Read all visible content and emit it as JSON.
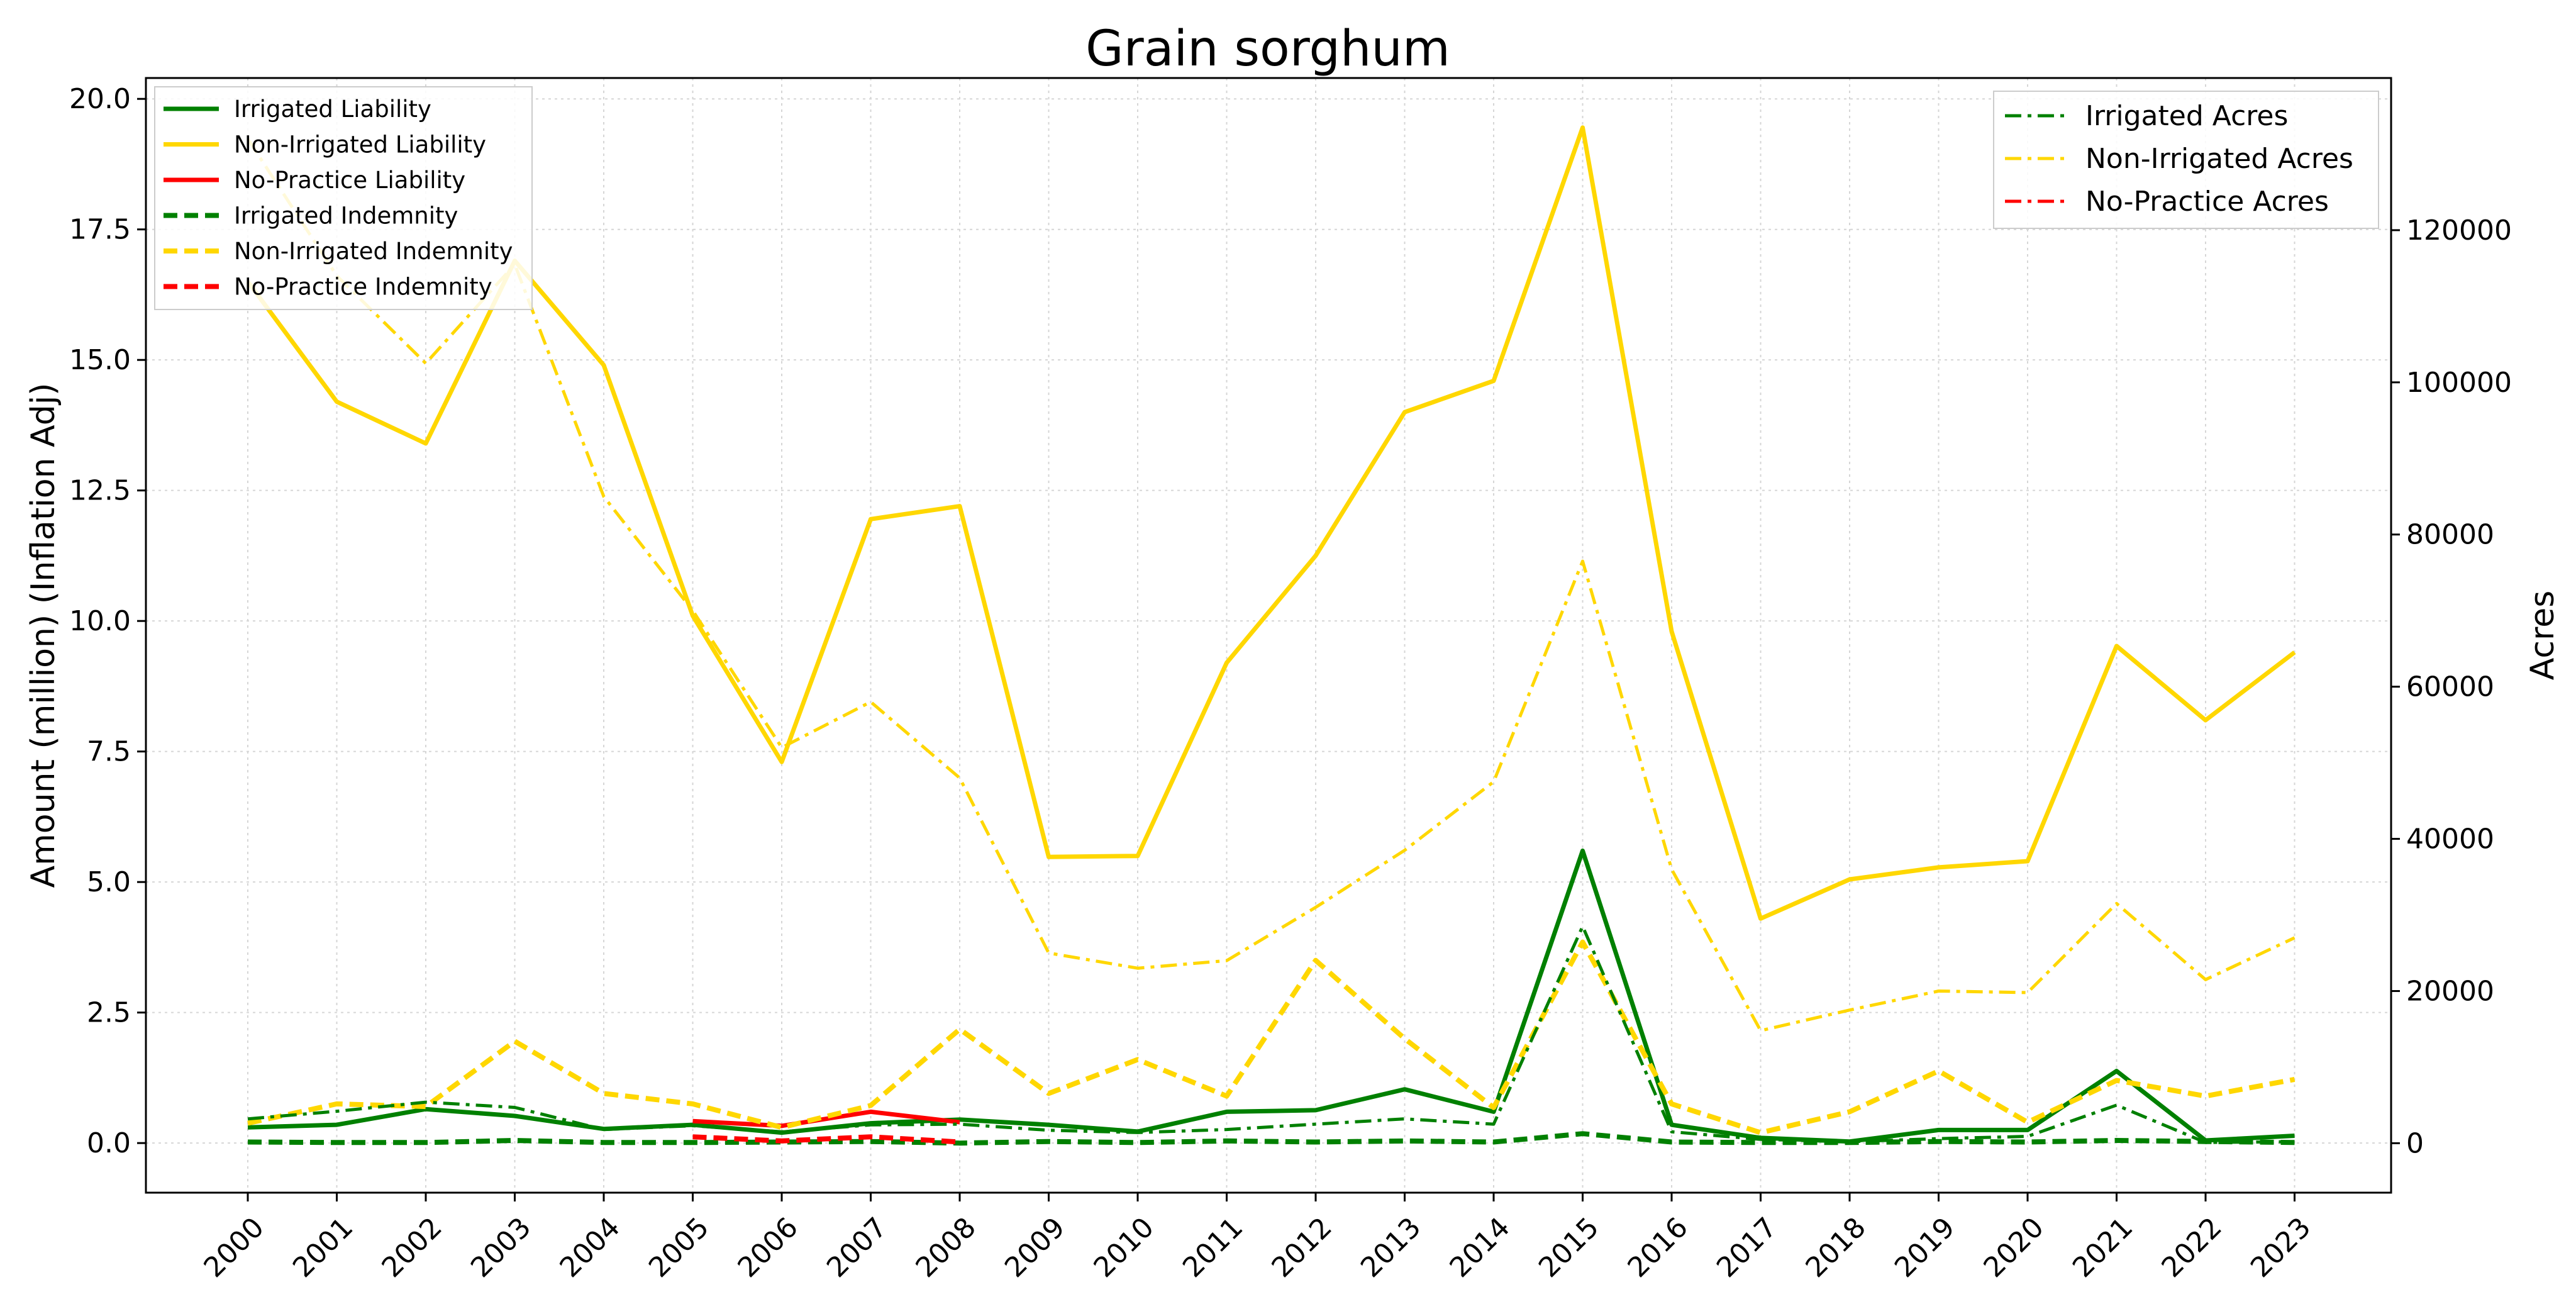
{
  "chart_data": {
    "type": "line",
    "title": "Grain sorghum",
    "ylabel": "Amount (million) (Inflation Adj)",
    "y2label": "Acres",
    "ylim": [
      -0.95,
      20.4
    ],
    "y2lim": [
      -6500,
      140000
    ],
    "yticks": [
      "0.0",
      "2.5",
      "5.0",
      "7.5",
      "10.0",
      "12.5",
      "15.0",
      "17.5",
      "20.0"
    ],
    "y2ticks": [
      "0",
      "20000",
      "40000",
      "60000",
      "80000",
      "100000",
      "120000"
    ],
    "grid": true,
    "x": [
      2000,
      2001,
      2002,
      2003,
      2004,
      2005,
      2006,
      2007,
      2008,
      2009,
      2010,
      2011,
      2012,
      2013,
      2014,
      2015,
      2016,
      2017,
      2018,
      2019,
      2020,
      2021,
      2022,
      2023
    ],
    "colors": {
      "irrigated": "#008000",
      "non_irrigated": "#FFD700",
      "no_practice": "#FF0000"
    },
    "legend_left_position": "upper-left",
    "legend_right_position": "upper-right",
    "series": [
      {
        "name": "Irrigated Liability",
        "axis": "left",
        "style": "solid",
        "color": "#008000",
        "values": [
          0.3,
          0.35,
          0.65,
          0.52,
          0.27,
          0.35,
          0.2,
          0.38,
          0.45,
          0.35,
          0.22,
          0.6,
          0.63,
          1.03,
          0.6,
          5.6,
          0.35,
          0.1,
          0.03,
          0.25,
          0.25,
          1.38,
          0.05,
          0.14
        ]
      },
      {
        "name": "Non-Irrigated Liability",
        "axis": "left",
        "style": "solid",
        "color": "#FFD700",
        "values": [
          16.5,
          14.2,
          13.4,
          16.9,
          14.9,
          10.1,
          7.3,
          11.95,
          12.2,
          5.48,
          5.5,
          9.2,
          11.25,
          14.0,
          14.6,
          19.45,
          9.8,
          4.3,
          5.05,
          5.28,
          5.4,
          9.52,
          8.1,
          9.4
        ]
      },
      {
        "name": "No-Practice Liability",
        "axis": "left",
        "style": "solid",
        "color": "#FF0000",
        "values": [
          null,
          null,
          null,
          null,
          null,
          0.42,
          0.33,
          0.6,
          0.4,
          null,
          null,
          null,
          null,
          null,
          null,
          null,
          null,
          null,
          null,
          null,
          null,
          null,
          null,
          null
        ]
      },
      {
        "name": "Irrigated Indemnity",
        "axis": "left",
        "style": "dashed",
        "color": "#008000",
        "values": [
          0.02,
          0.01,
          0.01,
          0.05,
          0.01,
          0.01,
          0.02,
          0.03,
          0.0,
          0.03,
          0.01,
          0.04,
          0.02,
          0.04,
          0.02,
          0.18,
          0.02,
          0.01,
          0.01,
          0.03,
          0.02,
          0.05,
          0.03,
          0.01
        ]
      },
      {
        "name": "Non-Irrigated Indemnity",
        "axis": "left",
        "style": "dashed",
        "color": "#FFD700",
        "values": [
          0.38,
          0.75,
          0.7,
          1.95,
          0.95,
          0.75,
          0.3,
          0.72,
          2.18,
          0.95,
          1.6,
          0.9,
          3.5,
          2.0,
          0.68,
          3.85,
          0.75,
          0.2,
          0.6,
          1.38,
          0.4,
          1.2,
          0.9,
          1.22
        ]
      },
      {
        "name": "No-Practice Indemnity",
        "axis": "left",
        "style": "dashed",
        "color": "#FF0000",
        "values": [
          null,
          null,
          null,
          null,
          null,
          0.12,
          0.04,
          0.12,
          0.02,
          null,
          null,
          null,
          null,
          null,
          null,
          null,
          null,
          null,
          null,
          null,
          null,
          null,
          null,
          null
        ]
      },
      {
        "name": "Irrigated Acres",
        "axis": "right",
        "style": "dashdot",
        "color": "#008000",
        "values": [
          3200,
          4200,
          5400,
          4700,
          1800,
          2300,
          1500,
          2400,
          2500,
          1700,
          1400,
          1800,
          2500,
          3200,
          2500,
          28500,
          1500,
          500,
          200,
          600,
          900,
          5000,
          100,
          200
        ]
      },
      {
        "name": "Non-Irrigated Acres",
        "axis": "right",
        "style": "dashdot",
        "color": "#FFD700",
        "values": [
          132000,
          114000,
          102500,
          115500,
          85000,
          70000,
          52000,
          58000,
          48000,
          25000,
          23000,
          24000,
          31000,
          38500,
          47500,
          76500,
          36000,
          14800,
          17500,
          20000,
          19800,
          31500,
          21500,
          27000
        ]
      },
      {
        "name": "No-Practice Acres",
        "axis": "right",
        "style": "dashdot",
        "color": "#FF0000",
        "values": [
          null,
          null,
          null,
          null,
          null,
          null,
          null,
          null,
          null,
          null,
          null,
          null,
          null,
          null,
          null,
          null,
          null,
          null,
          null,
          null,
          null,
          null,
          null,
          null
        ]
      }
    ]
  }
}
